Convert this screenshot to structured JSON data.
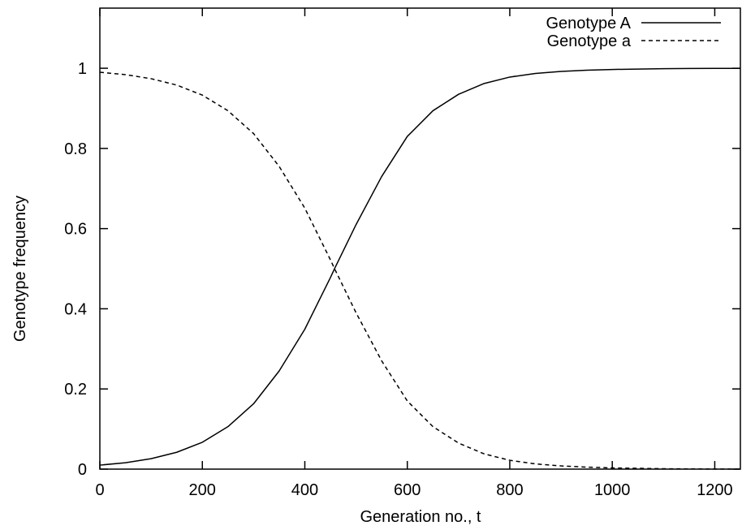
{
  "chart_data": {
    "type": "line",
    "title": "",
    "xlabel": "Generation no., t",
    "ylabel": "Genotype frequency",
    "xlim": [
      0,
      1250
    ],
    "ylim": [
      0,
      1.15
    ],
    "x_ticks": [
      0,
      200,
      400,
      600,
      800,
      1000,
      1200
    ],
    "y_ticks": [
      0,
      0.2,
      0.4,
      0.6,
      0.8,
      1
    ],
    "x_tick_labels": [
      "0",
      "200",
      "400",
      "600",
      "800",
      "1000",
      "1200"
    ],
    "y_tick_labels": [
      "0",
      "0.2",
      "0.4",
      "0.6",
      "0.8",
      "1"
    ],
    "grid": false,
    "legend_position": "top-right",
    "series": [
      {
        "name": "Genotype A",
        "style": "solid",
        "color": "#000000",
        "x": [
          0,
          50,
          100,
          150,
          200,
          250,
          300,
          350,
          400,
          450,
          458,
          500,
          550,
          600,
          650,
          700,
          750,
          800,
          850,
          900,
          950,
          1000,
          1050,
          1100,
          1150,
          1200,
          1250
        ],
        "y": [
          0.01,
          0.016,
          0.026,
          0.042,
          0.067,
          0.106,
          0.163,
          0.245,
          0.349,
          0.478,
          0.5,
          0.61,
          0.73,
          0.83,
          0.894,
          0.935,
          0.962,
          0.978,
          0.987,
          0.992,
          0.995,
          0.997,
          0.998,
          0.999,
          0.9995,
          0.9997,
          0.9998
        ]
      },
      {
        "name": "Genotype a",
        "style": "dashed",
        "color": "#000000",
        "x": [
          0,
          50,
          100,
          150,
          200,
          250,
          300,
          350,
          400,
          450,
          458,
          500,
          550,
          600,
          650,
          700,
          750,
          800,
          850,
          900,
          950,
          1000,
          1050,
          1100,
          1150,
          1200,
          1250
        ],
        "y": [
          0.99,
          0.984,
          0.974,
          0.958,
          0.933,
          0.894,
          0.837,
          0.755,
          0.651,
          0.522,
          0.5,
          0.39,
          0.27,
          0.17,
          0.106,
          0.065,
          0.038,
          0.022,
          0.013,
          0.008,
          0.005,
          0.003,
          0.002,
          0.001,
          0.0005,
          0.0003,
          0.0002
        ]
      }
    ]
  }
}
